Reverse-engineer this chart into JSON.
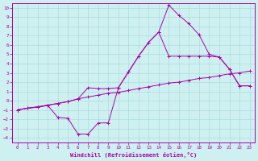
{
  "xlabel": "Windchill (Refroidissement éolien,°C)",
  "bg_color": "#cff0f0",
  "grid_color": "#aadddd",
  "line_color": "#aa00aa",
  "xlim": [
    -0.5,
    23.5
  ],
  "ylim": [
    -4.5,
    10.5
  ],
  "xticks": [
    0,
    1,
    2,
    3,
    4,
    5,
    6,
    7,
    8,
    9,
    10,
    11,
    12,
    13,
    14,
    15,
    16,
    17,
    18,
    19,
    20,
    21,
    22,
    23
  ],
  "yticks": [
    -4,
    -3,
    -2,
    -1,
    0,
    1,
    2,
    3,
    4,
    5,
    6,
    7,
    8,
    9,
    10
  ],
  "line1_x": [
    0,
    1,
    2,
    3,
    4,
    5,
    6,
    7,
    8,
    9,
    10,
    11,
    12,
    13,
    14,
    15,
    16,
    17,
    18,
    19,
    20,
    21,
    22,
    23
  ],
  "line1_y": [
    -1.0,
    -0.8,
    -0.7,
    -0.5,
    -0.3,
    -0.1,
    0.2,
    0.4,
    0.6,
    0.8,
    0.9,
    1.1,
    1.3,
    1.5,
    1.7,
    1.9,
    2.0,
    2.2,
    2.4,
    2.5,
    2.7,
    2.9,
    3.0,
    3.2
  ],
  "line2_x": [
    0,
    1,
    2,
    3,
    4,
    5,
    6,
    7,
    8,
    9,
    10,
    11,
    12,
    13,
    14,
    15,
    16,
    17,
    18,
    19,
    20,
    21,
    22,
    23
  ],
  "line2_y": [
    -1.0,
    -0.8,
    -0.7,
    -0.5,
    -1.8,
    -1.9,
    -3.6,
    -3.6,
    -2.4,
    -2.4,
    1.4,
    3.1,
    4.8,
    6.3,
    7.4,
    10.3,
    9.2,
    8.3,
    7.1,
    5.0,
    4.7,
    3.4,
    1.6,
    1.6
  ],
  "line3_x": [
    0,
    4,
    5,
    6,
    7,
    8,
    9,
    10,
    11,
    12,
    13,
    14,
    15,
    16,
    17,
    18,
    19,
    20,
    21,
    22,
    23
  ],
  "line3_y": [
    -1.0,
    -0.3,
    -0.1,
    0.2,
    1.4,
    1.3,
    1.3,
    1.4,
    3.1,
    4.8,
    6.3,
    7.4,
    4.8,
    4.8,
    4.8,
    4.8,
    4.8,
    4.7,
    3.4,
    1.6,
    1.6
  ]
}
